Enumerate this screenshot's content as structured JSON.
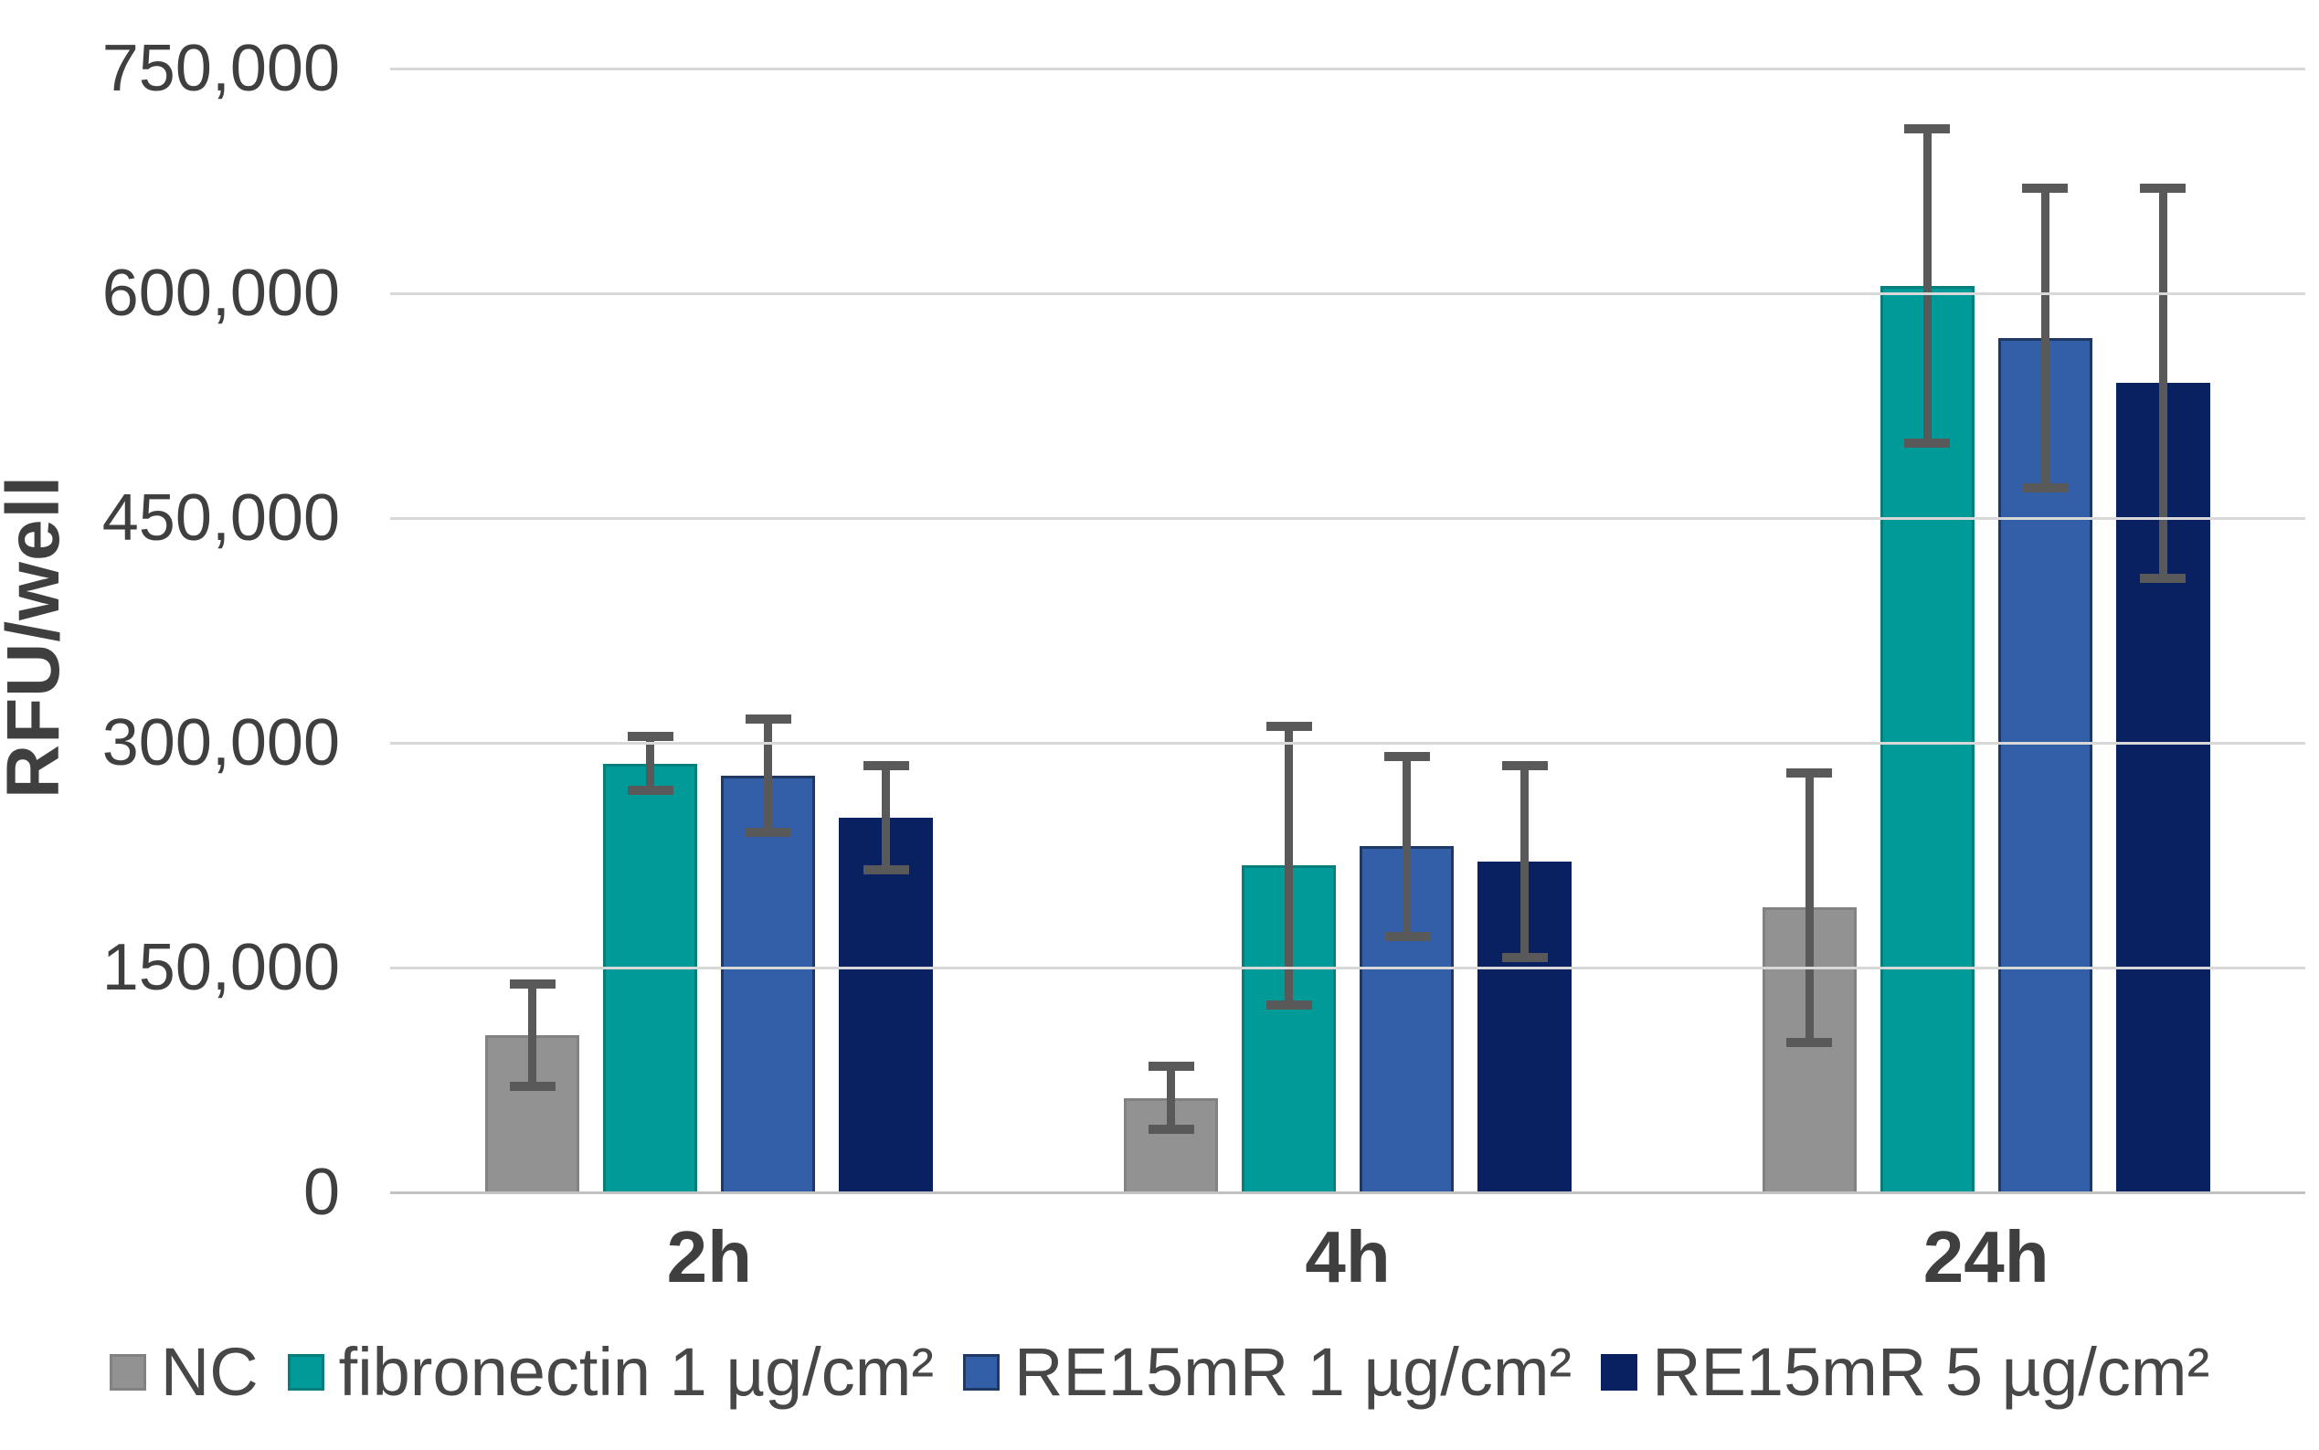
{
  "y_axis": {
    "title": "RFU/well"
  },
  "chart_data": {
    "type": "bar",
    "title": "",
    "xlabel": "",
    "ylabel": "RFU/well",
    "categories": [
      "2h",
      "4h",
      "24h"
    ],
    "series": [
      {
        "name": "NC",
        "color": "#929292",
        "border_color": "#828282",
        "values": [
          105000,
          63000,
          190000
        ],
        "errors": [
          34000,
          21000,
          90000
        ]
      },
      {
        "name": "fibronectin 1 µg/cm²",
        "color": "#009b98",
        "border_color": "#067f7c",
        "values": [
          286000,
          218000,
          605000
        ],
        "errors": [
          18000,
          93000,
          105000
        ]
      },
      {
        "name": "RE15mR 1 µg/cm²",
        "color": "#335fa8",
        "border_color": "#1f3864",
        "values": [
          278000,
          231000,
          570000
        ],
        "errors": [
          38000,
          60000,
          100000
        ]
      },
      {
        "name": "RE15mR 5 µg/cm²",
        "color": "#0a2161",
        "border_color": "#0a2161",
        "values": [
          250000,
          221000,
          540000
        ],
        "errors": [
          35000,
          64000,
          130000
        ]
      }
    ],
    "ylim": [
      0,
      750000
    ],
    "ytick_step": 150000,
    "yticks": [
      "750,000",
      "600,000",
      "450,000",
      "300,000",
      "150,000",
      "0"
    ],
    "grid": true,
    "gridline_color": "#d8d8d8",
    "axis_line_color": "#c2c2c2",
    "error_bar_color": "#595959",
    "legend_position": "bottom",
    "text_color": "#3f3f3f"
  }
}
